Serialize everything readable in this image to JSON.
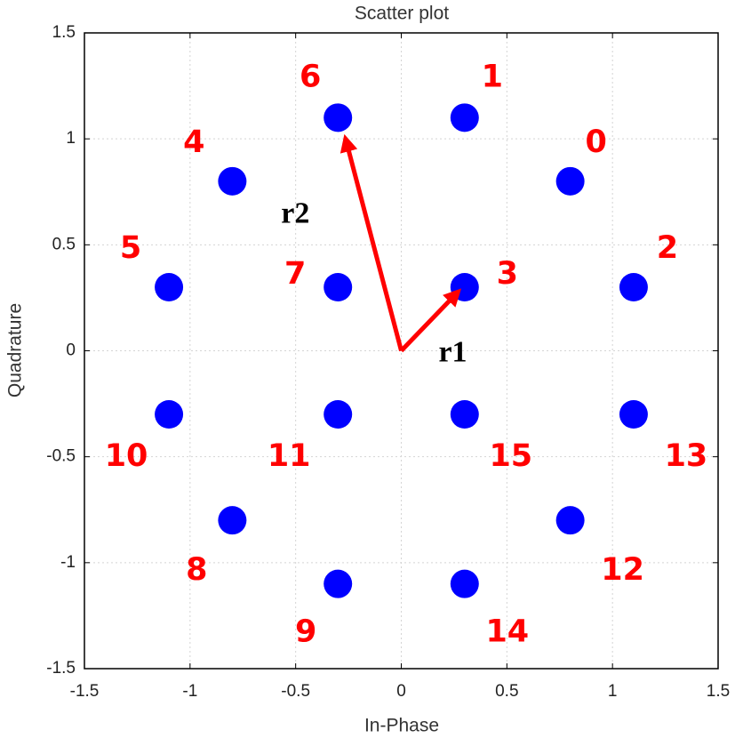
{
  "chart_data": {
    "type": "scatter",
    "title": "Scatter plot",
    "x_label": "In-Phase",
    "y_label": "Quadrature",
    "series": [
      {
        "color": "#0000ff",
        "x": [
          0.8,
          0.3,
          1.1,
          0.3,
          -0.8,
          -1.1,
          -0.3,
          -0.3,
          -0.8,
          -0.3,
          -1.1,
          -0.3,
          0.8,
          1.1,
          0.3,
          0.3
        ],
        "values": [
          0.8,
          1.1,
          0.3,
          0.3,
          0.8,
          0.3,
          1.1,
          0.3,
          -0.8,
          -1.1,
          -0.3,
          -0.3,
          -0.8,
          -0.3,
          -1.1,
          -0.3
        ],
        "labels": [
          "0",
          "1",
          "2",
          "3",
          "4",
          "5",
          "6",
          "7",
          "8",
          "9",
          "10",
          "11",
          "12",
          "13",
          "14",
          "15"
        ],
        "label_color": "#ff0000"
      }
    ],
    "annotations": [
      "r1",
      "r2"
    ],
    "xlim": [
      -1.5,
      1.5
    ],
    "ylim": [
      -1.5,
      1.5
    ],
    "xticks": [
      -1.5,
      -1,
      -0.5,
      0,
      0.5,
      1,
      1.5
    ],
    "yticks": [
      -1.5,
      -1,
      -0.5,
      0,
      0.5,
      1,
      1.5
    ],
    "grid": true
  }
}
